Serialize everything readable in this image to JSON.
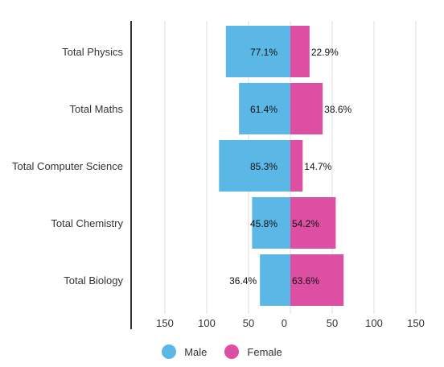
{
  "chart_data": {
    "type": "bar",
    "orientation": "horizontal-diverging",
    "categories": [
      "Total Physics",
      "Total Maths",
      "Total Computer Science",
      "Total Chemistry",
      "Total Biology"
    ],
    "series": [
      {
        "name": "Male",
        "color": "#5BB8E6",
        "values": [
          77.1,
          61.4,
          85.3,
          45.8,
          36.4
        ],
        "labels": [
          "77.1%",
          "61.4%",
          "85.3%",
          "45.8%",
          "36.4%"
        ]
      },
      {
        "name": "Female",
        "color": "#DD4FA2",
        "values": [
          22.9,
          38.6,
          14.7,
          54.2,
          63.6
        ],
        "labels": [
          "22.9%",
          "38.6%",
          "14.7%",
          "54.2%",
          "63.6%"
        ]
      }
    ],
    "xlim": [
      -150,
      150
    ],
    "x_ticks": [
      -150,
      -100,
      -50,
      0,
      50,
      100,
      150
    ],
    "x_tick_labels": [
      "150",
      "100",
      "50",
      "0",
      "50",
      "100",
      "150"
    ],
    "grid": true,
    "legend_position": "bottom"
  }
}
